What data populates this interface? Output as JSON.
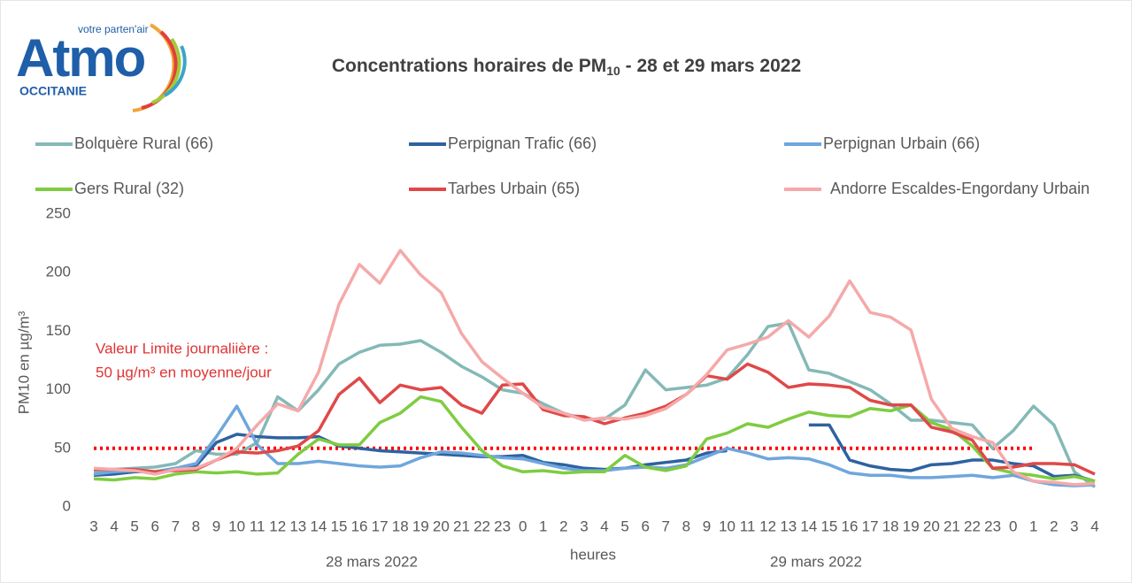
{
  "logo": {
    "name": "Atmo",
    "tagline": "votre parten'air",
    "region": "OCCITANIE"
  },
  "chart_data": {
    "type": "line",
    "title": {
      "main": "Concentrations horaires de PM",
      "sub": "10",
      "rest": " - 28 et 29 mars 2022"
    },
    "y_label": "PM10 en µg/m³",
    "x_label": "heures",
    "date_labels": [
      "28 mars 2022",
      "29 mars 2022"
    ],
    "annotation": [
      "Valeur Limite journaliière :",
      "50 µg/m³ en moyenne/jour"
    ],
    "reference_line": {
      "value": 50,
      "color": "#ff0000",
      "end_index": 46
    },
    "categories": [
      "3",
      "4",
      "5",
      "6",
      "7",
      "8",
      "9",
      "10",
      "11",
      "12",
      "13",
      "14",
      "15",
      "16",
      "17",
      "18",
      "19",
      "20",
      "21",
      "22",
      "23",
      "0",
      "1",
      "2",
      "3",
      "4",
      "5",
      "6",
      "7",
      "8",
      "9",
      "10",
      "11",
      "12",
      "13",
      "14",
      "15",
      "16",
      "17",
      "18",
      "19",
      "20",
      "21",
      "22",
      "23",
      "0",
      "1",
      "2",
      "3",
      "4"
    ],
    "ylim": [
      0,
      250
    ],
    "yticks": [
      0,
      50,
      100,
      150,
      200,
      250
    ],
    "grid": false,
    "series": [
      {
        "name": "Bolquère Rural (66)",
        "color": "#84b9b6",
        "values": [
          30,
          32,
          33,
          34,
          37,
          48,
          45,
          45,
          55,
          94,
          82,
          100,
          122,
          132,
          138,
          139,
          142,
          132,
          120,
          111,
          100,
          97,
          88,
          80,
          75,
          75,
          87,
          117,
          100,
          102,
          104,
          110,
          130,
          154,
          157,
          117,
          114,
          107,
          100,
          88,
          74,
          74,
          72,
          70,
          50,
          65,
          86,
          70,
          30,
          17
        ]
      },
      {
        "name": "Perpignan Trafic (66)",
        "color": "#2e62a0",
        "values": [
          27,
          28,
          30,
          30,
          33,
          35,
          55,
          62,
          60,
          59,
          59,
          60,
          52,
          50,
          48,
          47,
          46,
          45,
          44,
          43,
          43,
          44,
          38,
          36,
          33,
          32,
          33,
          36,
          38,
          40,
          46,
          48,
          null,
          null,
          null,
          70,
          70,
          40,
          35,
          32,
          31,
          36,
          37,
          40,
          40,
          37,
          35,
          26,
          27,
          22
        ]
      },
      {
        "name": "Perpignan Urbain (66)",
        "color": "#6fa6dd",
        "values": [
          28,
          30,
          31,
          30,
          33,
          37,
          60,
          86,
          53,
          37,
          37,
          39,
          37,
          35,
          34,
          35,
          42,
          47,
          46,
          44,
          42,
          41,
          37,
          33,
          31,
          31,
          33,
          34,
          33,
          36,
          43,
          50,
          46,
          41,
          42,
          41,
          36,
          29,
          27,
          27,
          25,
          25,
          26,
          27,
          25,
          27,
          22,
          19,
          18,
          19
        ]
      },
      {
        "name": "Gers Rural (32)",
        "color": "#7fcc41",
        "values": [
          24,
          23,
          25,
          24,
          28,
          30,
          29,
          30,
          28,
          29,
          45,
          58,
          53,
          53,
          72,
          80,
          94,
          90,
          68,
          48,
          35,
          30,
          31,
          29,
          30,
          30,
          44,
          34,
          31,
          35,
          58,
          63,
          71,
          68,
          75,
          81,
          78,
          77,
          84,
          82,
          87,
          72,
          66,
          52,
          33,
          29,
          27,
          24,
          26,
          22
        ]
      },
      {
        "name": "Tarbes Urbain (65)",
        "color": "#e04848",
        "values": [
          32,
          32,
          32,
          30,
          31,
          32,
          40,
          47,
          46,
          48,
          52,
          65,
          96,
          110,
          89,
          104,
          100,
          102,
          87,
          80,
          104,
          105,
          83,
          78,
          77,
          71,
          76,
          80,
          86,
          96,
          112,
          109,
          122,
          115,
          102,
          105,
          104,
          102,
          91,
          87,
          87,
          68,
          64,
          57,
          33,
          34,
          37,
          37,
          36,
          28
        ]
      },
      {
        "name": "Andorre Escaldes-Engordany Urbain",
        "color": "#f5a9a9",
        "values": [
          33,
          32,
          31,
          28,
          32,
          33,
          40,
          50,
          70,
          88,
          82,
          115,
          173,
          207,
          191,
          219,
          198,
          183,
          148,
          124,
          110,
          97,
          85,
          80,
          74,
          76,
          75,
          78,
          84,
          96,
          113,
          134,
          139,
          145,
          159,
          145,
          163,
          193,
          166,
          162,
          151,
          92,
          67,
          60,
          55,
          30,
          22,
          21,
          19,
          20
        ]
      }
    ]
  }
}
